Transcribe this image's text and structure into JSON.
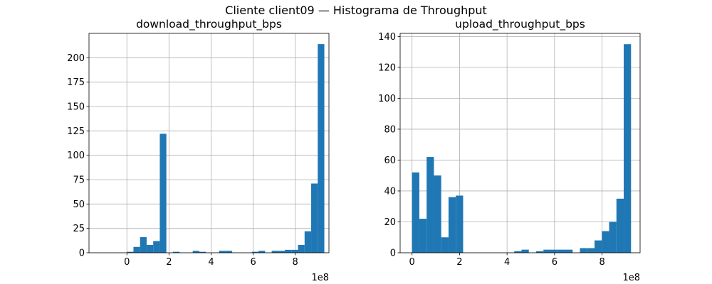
{
  "figure_title": "Cliente client09 — Histograma de Throughput",
  "chart_data": [
    {
      "type": "bar",
      "title": "download_throughput_bps",
      "xlabel": "",
      "ylabel": "",
      "xlim": [
        -1.8,
        9.6
      ],
      "ylim": [
        0,
        225
      ],
      "x_scale_label": "1e8",
      "x_ticks": [
        0,
        2,
        4,
        6,
        8
      ],
      "x_tick_labels": [
        "0",
        "2",
        "4",
        "6",
        "8"
      ],
      "y_ticks": [
        0,
        25,
        50,
        75,
        100,
        125,
        150,
        175,
        200
      ],
      "y_tick_labels": [
        "0",
        "25",
        "50",
        "75",
        "100",
        "125",
        "150",
        "175",
        "200"
      ],
      "grid": true,
      "bar_color": "#1f77b4",
      "bin_start": 0,
      "bin_width": 0.3127,
      "values": [
        1,
        6,
        16,
        8,
        12,
        122,
        0,
        1,
        0,
        0,
        2,
        1,
        0,
        0,
        2,
        2,
        0,
        0,
        0,
        1,
        2,
        0,
        2,
        2,
        3,
        3,
        8,
        22,
        71,
        214
      ]
    },
    {
      "type": "bar",
      "title": "upload_throughput_bps",
      "xlabel": "",
      "ylabel": "",
      "xlim": [
        -0.5,
        9.6
      ],
      "ylim": [
        0,
        142
      ],
      "x_scale_label": "1e8",
      "x_ticks": [
        0,
        2,
        4,
        6,
        8
      ],
      "x_tick_labels": [
        "0",
        "2",
        "4",
        "6",
        "8"
      ],
      "y_ticks": [
        0,
        20,
        40,
        60,
        80,
        100,
        120,
        140
      ],
      "y_tick_labels": [
        "0",
        "20",
        "40",
        "60",
        "80",
        "100",
        "120",
        "140"
      ],
      "grid": true,
      "bar_color": "#1f77b4",
      "bin_start": 0,
      "bin_width": 0.3073,
      "values": [
        52,
        22,
        62,
        50,
        10,
        36,
        37,
        0,
        0,
        0,
        0,
        0,
        0,
        0,
        1,
        2,
        0,
        1,
        2,
        2,
        2,
        2,
        0,
        3,
        3,
        8,
        14,
        20,
        35,
        135
      ]
    }
  ]
}
